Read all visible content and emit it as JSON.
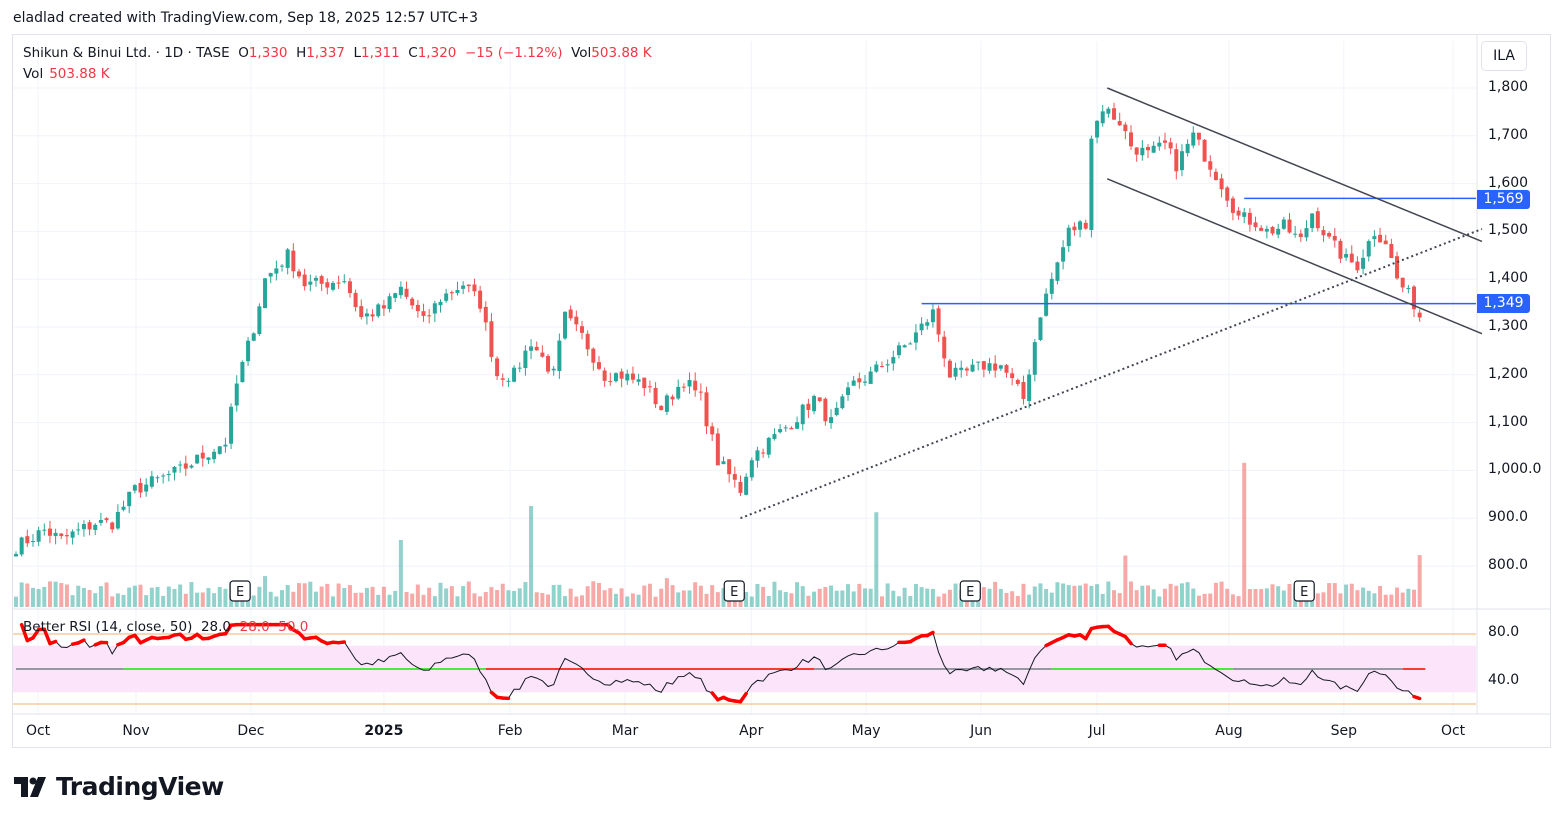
{
  "credit": "eladlad created with TradingView.com, Sep 18, 2025 12:57 UTC+3",
  "legend": {
    "symbol": "Shikun & Binui Ltd. · 1D · TASE",
    "o_label": "O",
    "o": "1,330",
    "h_label": "H",
    "h": "1,337",
    "l_label": "L",
    "l": "1,311",
    "c_label": "C",
    "c": "1,320",
    "change": "−15 (−1.12%)",
    "vol_label": "Vol",
    "vol": "503.88 K"
  },
  "volume_legend": {
    "label": "Vol",
    "value": "503.88 K"
  },
  "currency": "ILA",
  "rsi_legend": {
    "name": "Better RSI (14, close, 50)",
    "v1": "28.0",
    "v2": "28.0",
    "v3": "50.0"
  },
  "price_badges": [
    "1,569",
    "1,349"
  ],
  "rsi_axis": [
    "80.0",
    "40.0"
  ],
  "logo": "TradingView",
  "colors": {
    "up": "#26a69a",
    "down": "#ef5350",
    "badge": "#2962ff",
    "rsi_band": "#fce4fb",
    "rsi_bound": "#f7b26b"
  },
  "chart_data": {
    "type": "candlestick",
    "title": "Shikun & Binui Ltd. · 1D · TASE",
    "y_ticks": [
      "1,800",
      "1,700",
      "1,600",
      "1,500",
      "1,400",
      "1,300",
      "1,200",
      "1,100",
      "1,000.0",
      "900.0",
      "800.0"
    ],
    "y_tick_values": [
      1800,
      1700,
      1600,
      1500,
      1400,
      1300,
      1200,
      1100,
      1000,
      900,
      800
    ],
    "ylim": [
      740,
      1880
    ],
    "x_ticks": [
      {
        "label": "Oct",
        "bar": 3.9
      },
      {
        "label": "Nov",
        "bar": 21.2
      },
      {
        "label": "Dec",
        "bar": 41.5
      },
      {
        "label": "2025",
        "bar": 65,
        "bold": true
      },
      {
        "label": "Feb",
        "bar": 87.3
      },
      {
        "label": "Mar",
        "bar": 107.6
      },
      {
        "label": "Apr",
        "bar": 129.9
      },
      {
        "label": "May",
        "bar": 150.2
      },
      {
        "label": "Jun",
        "bar": 170.5
      },
      {
        "label": "Jul",
        "bar": 191
      },
      {
        "label": "Aug",
        "bar": 214.3
      },
      {
        "label": "Sep",
        "bar": 234.6
      },
      {
        "label": "Oct",
        "bar": 253.9
      }
    ],
    "bars": 249,
    "close_waypoints": [
      [
        0,
        840
      ],
      [
        5,
        875
      ],
      [
        8,
        855
      ],
      [
        14,
        890
      ],
      [
        17,
        890
      ],
      [
        21,
        960
      ],
      [
        24,
        975
      ],
      [
        29,
        1000
      ],
      [
        33,
        1030
      ],
      [
        37,
        1060
      ],
      [
        39,
        1180
      ],
      [
        42,
        1300
      ],
      [
        44,
        1400
      ],
      [
        48,
        1450
      ],
      [
        51,
        1390
      ],
      [
        54,
        1390
      ],
      [
        58,
        1400
      ],
      [
        61,
        1320
      ],
      [
        65,
        1340
      ],
      [
        68,
        1380
      ],
      [
        72,
        1310
      ],
      [
        75,
        1360
      ],
      [
        79,
        1390
      ],
      [
        82,
        1350
      ],
      [
        85,
        1200
      ],
      [
        88,
        1200
      ],
      [
        91,
        1270
      ],
      [
        95,
        1200
      ],
      [
        97,
        1320
      ],
      [
        100,
        1280
      ],
      [
        104,
        1200
      ],
      [
        107,
        1200
      ],
      [
        111,
        1180
      ],
      [
        114,
        1130
      ],
      [
        118,
        1190
      ],
      [
        121,
        1150
      ],
      [
        124,
        1020
      ],
      [
        128,
        960
      ],
      [
        130,
        1030
      ],
      [
        134,
        1070
      ],
      [
        137,
        1100
      ],
      [
        141,
        1150
      ],
      [
        144,
        1100
      ],
      [
        148,
        1180
      ],
      [
        151,
        1200
      ],
      [
        155,
        1240
      ],
      [
        158,
        1270
      ],
      [
        162,
        1330
      ],
      [
        165,
        1200
      ],
      [
        167,
        1200
      ],
      [
        171,
        1220
      ],
      [
        174,
        1220
      ],
      [
        178,
        1150
      ],
      [
        181,
        1330
      ],
      [
        183,
        1400
      ],
      [
        186,
        1500
      ],
      [
        189,
        1520
      ],
      [
        190,
        1700
      ],
      [
        192,
        1760
      ],
      [
        195,
        1730
      ],
      [
        197,
        1680
      ],
      [
        200,
        1660
      ],
      [
        203,
        1680
      ],
      [
        205,
        1640
      ],
      [
        208,
        1700
      ],
      [
        211,
        1640
      ],
      [
        213,
        1600
      ],
      [
        216,
        1530
      ],
      [
        219,
        1520
      ],
      [
        221,
        1500
      ],
      [
        224,
        1510
      ],
      [
        227,
        1480
      ],
      [
        229,
        1540
      ],
      [
        232,
        1480
      ],
      [
        235,
        1440
      ],
      [
        237,
        1430
      ],
      [
        240,
        1500
      ],
      [
        242,
        1480
      ],
      [
        244,
        1400
      ],
      [
        247,
        1350
      ],
      [
        248,
        1320
      ]
    ],
    "last_candle": {
      "open": 1330,
      "high": 1337,
      "low": 1311,
      "close": 1320,
      "volume_k": 503.88
    },
    "volume_spikes_k": [
      [
        68,
        650,
        "up"
      ],
      [
        91,
        980,
        "up"
      ],
      [
        152,
        920,
        "up"
      ],
      [
        196,
        500,
        "down"
      ],
      [
        217,
        1400,
        "down"
      ],
      [
        44,
        300,
        "up"
      ],
      [
        115,
        280,
        "down"
      ]
    ],
    "earnings_markers": [
      {
        "label": "E",
        "bar": 39.6
      },
      {
        "label": "E",
        "bar": 126.9
      },
      {
        "label": "E",
        "bar": 168.6
      },
      {
        "label": "E",
        "bar": 227.6
      }
    ],
    "horizontal_levels": [
      {
        "price": 1349,
        "from_bar": 160
      },
      {
        "price": 1569,
        "from_bar": 217
      }
    ],
    "trendlines": [
      {
        "name": "rising-support",
        "style": "dotted",
        "p1": [
          128,
          900
        ],
        "p2": [
          259,
          1505
        ]
      },
      {
        "name": "channel-upper",
        "style": "solid",
        "p1": [
          192.8,
          1800
        ],
        "p2": [
          259,
          1479
        ]
      },
      {
        "name": "channel-lower",
        "style": "solid",
        "p1": [
          192.8,
          1610
        ],
        "p2": [
          259,
          1286
        ]
      }
    ],
    "rsi": {
      "period": 14,
      "overbought": 70,
      "oversold": 30,
      "upper_bound": 80,
      "lower_bound": 20,
      "mid": 50,
      "mid_segments": [
        [
          0,
          19,
          "#9598a1"
        ],
        [
          19,
          83,
          "#4cea3a"
        ],
        [
          83,
          141,
          "#ff3b30"
        ],
        [
          141,
          183,
          "#9598a1"
        ],
        [
          183,
          215,
          "#4cea3a"
        ],
        [
          215,
          245,
          "#9598a1"
        ],
        [
          245,
          249,
          "#ff3b30"
        ]
      ]
    }
  }
}
